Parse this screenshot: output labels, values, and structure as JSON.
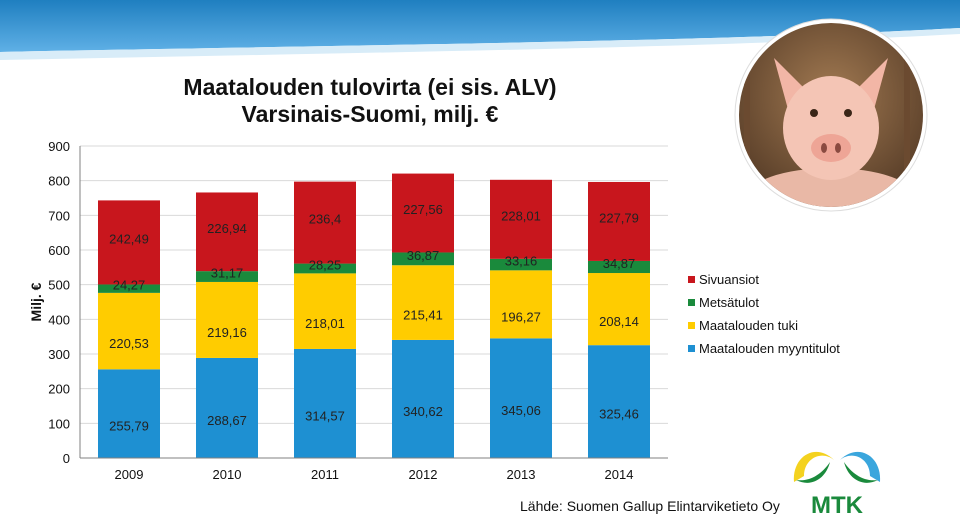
{
  "chart_data": {
    "type": "bar",
    "stacked": true,
    "title": "Maatalouden tulovirta (ei sis. ALV)",
    "subtitle": "Varsinais-Suomi, milj. €",
    "ylabel": "Milj. €",
    "xlabel": "",
    "ylim": [
      0,
      900
    ],
    "yticks": [
      0,
      100,
      200,
      300,
      400,
      500,
      600,
      700,
      800,
      900
    ],
    "grid": true,
    "legend_position": "right",
    "categories": [
      "2009",
      "2010",
      "2011",
      "2012",
      "2013",
      "2014"
    ],
    "series": [
      {
        "name": "Maatalouden myyntitulot",
        "color": "#1e90d2",
        "values": [
          255.79,
          288.67,
          314.57,
          340.62,
          345.06,
          325.46
        ],
        "labels": [
          "255,79",
          "288,67",
          "314,57",
          "340,62",
          "345,06",
          "325,46"
        ]
      },
      {
        "name": "Maatalouden tuki",
        "color": "#ffcc00",
        "values": [
          220.53,
          219.16,
          218.01,
          215.41,
          196.27,
          208.14
        ],
        "labels": [
          "220,53",
          "219,16",
          "218,01",
          "215,41",
          "196,27",
          "208,14"
        ]
      },
      {
        "name": "Metsätulot",
        "color": "#1a8a3c",
        "values": [
          24.27,
          31.17,
          28.25,
          36.87,
          33.16,
          34.87
        ],
        "labels": [
          "24,27",
          "31,17",
          "28,25",
          "36,87",
          "33,16",
          "34,87"
        ]
      },
      {
        "name": "Sivuansiot",
        "color": "#c8161d",
        "values": [
          242.49,
          226.94,
          236.4,
          227.56,
          228.01,
          227.79
        ],
        "labels": [
          "242,49",
          "226,94",
          "236,4",
          "227,56",
          "228,01",
          "227,79"
        ]
      }
    ],
    "legend_order": [
      "Sivuansiot",
      "Metsätulot",
      "Maatalouden tuki",
      "Maatalouden myyntitulot"
    ]
  },
  "source": "Lähde: Suomen Gallup Elintarviketieto Oy",
  "logo": {
    "text": "MTK",
    "color": "#1a8a3c"
  },
  "colors": {
    "band_top": "#1f7fc0",
    "background": "#ffffff"
  }
}
